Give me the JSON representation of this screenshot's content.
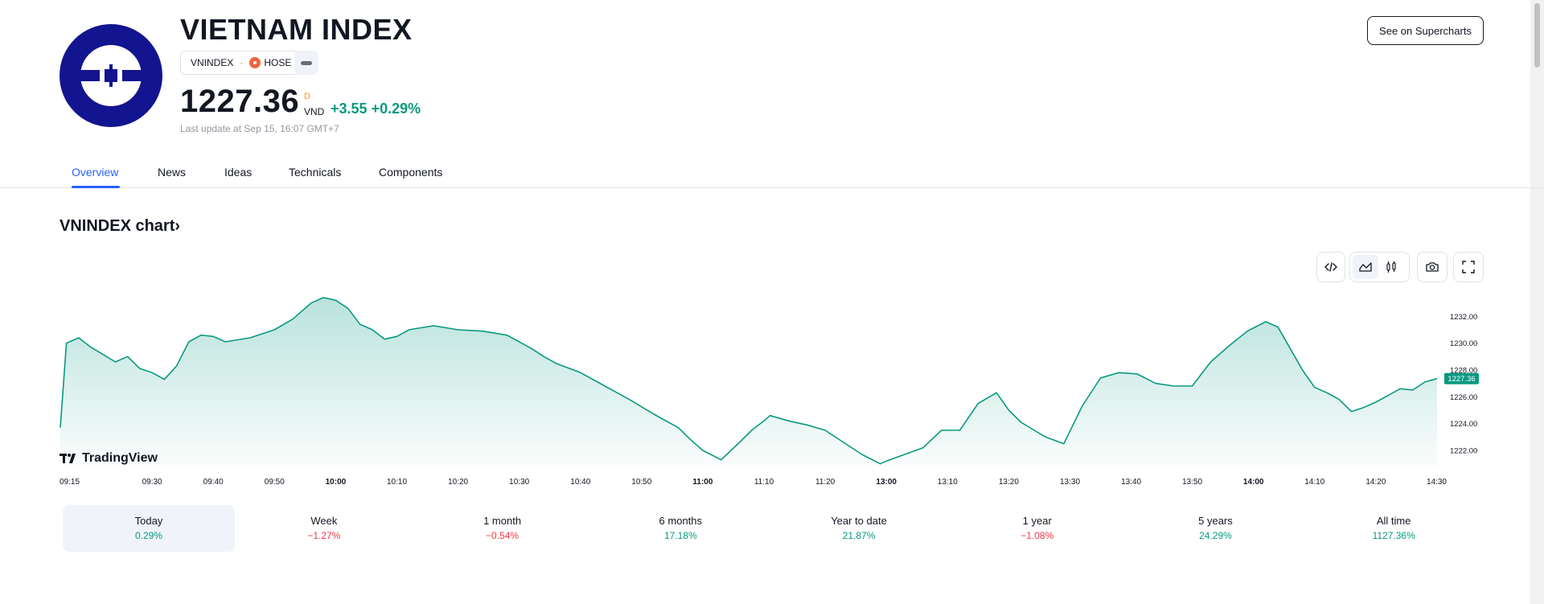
{
  "header": {
    "title": "VIETNAM INDEX",
    "symbol": "VNINDEX",
    "separator": "·",
    "exchange": "HOSE",
    "price": "1227.36",
    "price_flag": "D",
    "currency": "VND",
    "change": "+3.55",
    "change_pct": "+0.29%",
    "last_update": "Last update at Sep 15, 16:07 GMT+7",
    "supercharts_label": "See on Supercharts",
    "logo_color": "#13148f",
    "positive_color": "#089981",
    "negative_color": "#f23645",
    "accent_color": "#2962ff"
  },
  "tabs": [
    {
      "label": "Overview",
      "active": true
    },
    {
      "label": "News"
    },
    {
      "label": "Ideas"
    },
    {
      "label": "Technicals"
    },
    {
      "label": "Components"
    }
  ],
  "chart_section": {
    "title": "VNINDEX chart",
    "chevron": "›",
    "tools": [
      "embed-icon",
      "area-chart-icon",
      "candles-icon",
      "camera-icon",
      "fullscreen-icon"
    ],
    "branding": "TradingView"
  },
  "chart_data": {
    "type": "area",
    "x_ticks": [
      "09:15",
      "09:30",
      "09:40",
      "09:50",
      "10:00",
      "10:10",
      "10:20",
      "10:30",
      "10:40",
      "10:50",
      "11:00",
      "11:10",
      "11:20",
      "13:00",
      "13:10",
      "13:20",
      "13:30",
      "13:40",
      "13:50",
      "14:00",
      "14:10",
      "14:20",
      "14:30"
    ],
    "bold_ticks": [
      "10:00",
      "11:00",
      "13:00",
      "14:00"
    ],
    "y_ticks": [
      "1232.00",
      "1230.00",
      "1228.00",
      "1226.00",
      "1224.00",
      "1222.00"
    ],
    "ylim": [
      1220.8,
      1234.0
    ],
    "last_value_label": "1227.36",
    "line_color": "#089981",
    "x": [
      "09:15",
      "09:16",
      "09:18",
      "09:20",
      "09:24",
      "09:26",
      "09:28",
      "09:30",
      "09:32",
      "09:34",
      "09:36",
      "09:38",
      "09:40",
      "09:42",
      "09:46",
      "09:50",
      "09:53",
      "09:56",
      "09:58",
      "10:00",
      "10:02",
      "10:04",
      "10:06",
      "10:08",
      "10:10",
      "10:12",
      "10:16",
      "10:20",
      "10:24",
      "10:28",
      "10:32",
      "10:34",
      "10:36",
      "10:40",
      "10:44",
      "10:48",
      "10:52",
      "10:56",
      "10:58",
      "11:00",
      "11:03",
      "11:06",
      "11:08",
      "11:10",
      "11:11",
      "11:14",
      "11:17",
      "11:20",
      "11:23",
      "11:26",
      "11:29",
      "13:00",
      "13:03",
      "13:06",
      "13:09",
      "13:12",
      "13:15",
      "13:18",
      "13:20",
      "13:22",
      "13:26",
      "13:29",
      "13:32",
      "13:35",
      "13:38",
      "13:41",
      "13:44",
      "13:47",
      "13:50",
      "13:53",
      "13:56",
      "13:59",
      "14:02",
      "14:04",
      "14:06",
      "14:08",
      "14:10",
      "14:12",
      "14:14",
      "14:16",
      "14:18",
      "14:20",
      "14:22",
      "14:24",
      "14:26",
      "14:28",
      "14:30"
    ],
    "y": [
      1223.7,
      1230.0,
      1230.4,
      1229.7,
      1228.6,
      1229.0,
      1228.1,
      1227.8,
      1227.3,
      1228.3,
      1230.1,
      1230.6,
      1230.5,
      1230.1,
      1230.4,
      1231.0,
      1231.8,
      1233.0,
      1233.4,
      1233.2,
      1232.6,
      1231.4,
      1231.0,
      1230.3,
      1230.5,
      1231.0,
      1231.3,
      1231.0,
      1230.9,
      1230.6,
      1229.6,
      1229.0,
      1228.5,
      1227.8,
      1226.8,
      1225.8,
      1224.7,
      1223.7,
      1222.8,
      1222.0,
      1221.3,
      1222.6,
      1223.5,
      1224.2,
      1224.6,
      1224.2,
      1223.9,
      1223.5,
      1222.6,
      1221.7,
      1221.0,
      1221.2,
      1221.7,
      1222.2,
      1223.5,
      1223.5,
      1225.5,
      1226.3,
      1225.0,
      1224.1,
      1223.0,
      1222.5,
      1225.3,
      1227.4,
      1227.8,
      1227.7,
      1227.0,
      1226.8,
      1226.8,
      1228.6,
      1229.8,
      1230.9,
      1231.6,
      1231.2,
      1229.6,
      1228.0,
      1226.7,
      1226.3,
      1225.8,
      1224.9,
      1225.2,
      1225.6,
      1226.1,
      1226.6,
      1226.5,
      1227.1,
      1227.36
    ]
  },
  "periods": [
    {
      "label": "Today",
      "value": "0.29%",
      "sign": "pos",
      "active": true
    },
    {
      "label": "Week",
      "value": "−1.27%",
      "sign": "neg"
    },
    {
      "label": "1 month",
      "value": "−0.54%",
      "sign": "neg"
    },
    {
      "label": "6 months",
      "value": "17.18%",
      "sign": "pos"
    },
    {
      "label": "Year to date",
      "value": "21.87%",
      "sign": "pos"
    },
    {
      "label": "1 year",
      "value": "−1.08%",
      "sign": "neg"
    },
    {
      "label": "5 years",
      "value": "24.29%",
      "sign": "pos"
    },
    {
      "label": "All time",
      "value": "1127.36%",
      "sign": "pos"
    }
  ]
}
